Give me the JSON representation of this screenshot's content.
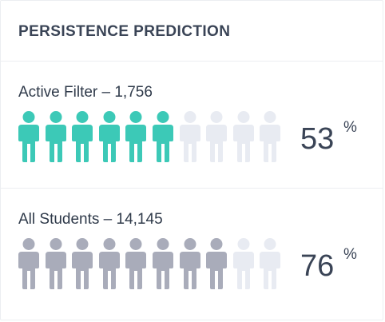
{
  "card": {
    "title": "PERSISTENCE PREDICTION"
  },
  "sections": [
    {
      "label": "Active Filter – 1,756",
      "percent": 53,
      "percent_label": "53",
      "percent_sign": "%",
      "figures_total": 10,
      "figures_filled": 6,
      "fill_color": "#3cc9b7",
      "empty_color": "#e8ebf2",
      "icon": "person-icon"
    },
    {
      "label": "All Students – 14,145",
      "percent": 76,
      "percent_label": "76",
      "percent_sign": "%",
      "figures_total": 10,
      "figures_filled": 8,
      "fill_color": "#a9acba",
      "empty_color": "#e8ebf2",
      "icon": "person-icon"
    }
  ]
}
